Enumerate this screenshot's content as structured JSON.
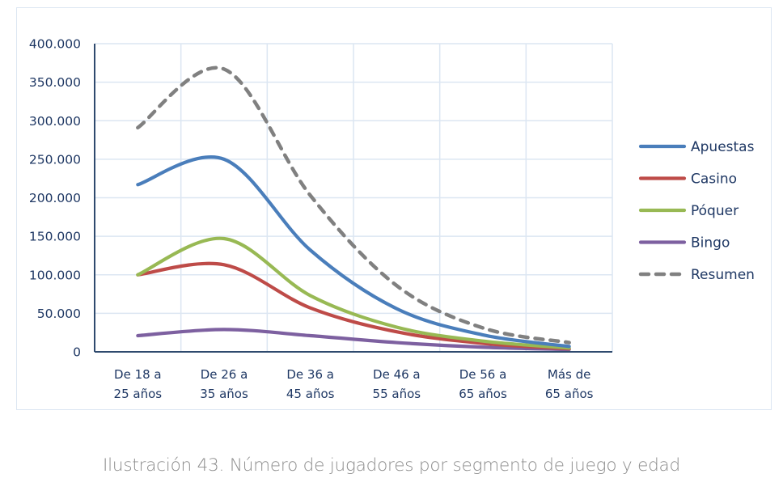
{
  "caption": "Ilustración 43. Número de jugadores por segmento de juego y edad",
  "chart_data": {
    "type": "line",
    "title": "",
    "xlabel": "",
    "ylabel": "",
    "ylim": [
      0,
      400000
    ],
    "yticks": [
      0,
      50000,
      100000,
      150000,
      200000,
      250000,
      300000,
      350000,
      400000
    ],
    "ytick_labels": [
      "0",
      "50.000",
      "100.000",
      "150.000",
      "200.000",
      "250.000",
      "300.000",
      "350.000",
      "400.000"
    ],
    "categories": [
      [
        "De 18 a",
        "25 años"
      ],
      [
        "De 26 a",
        "35 años"
      ],
      [
        "De 36 a",
        "45 años"
      ],
      [
        "De 46 a",
        "55 años"
      ],
      [
        "De 56 a",
        "65 años"
      ],
      [
        "Más de",
        "65 años"
      ]
    ],
    "grid": true,
    "smooth": true,
    "legend_position": "right",
    "series": [
      {
        "name": "Apuestas",
        "color": "#4a7ebb",
        "dashed": false,
        "values": [
          217000,
          250000,
          132000,
          56000,
          22000,
          7000
        ]
      },
      {
        "name": "Casino",
        "color": "#be4b48",
        "dashed": false,
        "values": [
          100000,
          113000,
          57000,
          26000,
          11000,
          4000
        ]
      },
      {
        "name": "Póquer",
        "color": "#98b954",
        "dashed": false,
        "values": [
          100000,
          147000,
          73000,
          32000,
          14000,
          5000
        ]
      },
      {
        "name": "Bingo",
        "color": "#7d60a0",
        "dashed": false,
        "values": [
          21000,
          29000,
          21000,
          12000,
          6000,
          3000
        ]
      },
      {
        "name": "Resumen",
        "color": "#808080",
        "dashed": true,
        "values": [
          291000,
          367000,
          203000,
          86000,
          31000,
          12000
        ]
      }
    ]
  }
}
